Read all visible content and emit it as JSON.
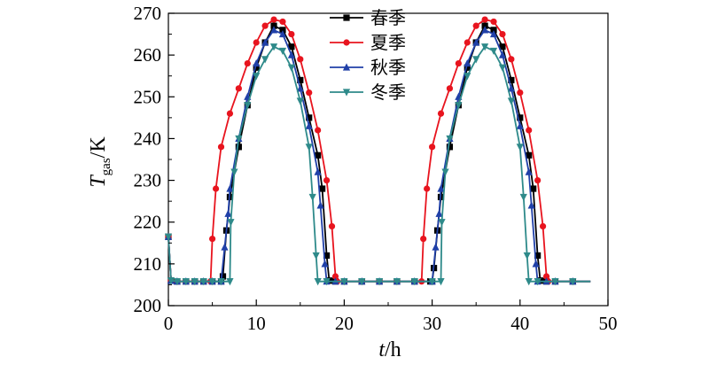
{
  "chart_data": {
    "type": "line",
    "title": "",
    "xlabel": {
      "var": "t",
      "unit": "/h"
    },
    "ylabel": {
      "var": "T",
      "sub": "gas",
      "unit": "/K"
    },
    "xlim": [
      0,
      50
    ],
    "ylim": [
      200,
      270
    ],
    "xticks": [
      0,
      10,
      20,
      30,
      40,
      50
    ],
    "yticks": [
      200,
      210,
      220,
      230,
      240,
      250,
      260,
      270
    ],
    "grid": false,
    "legend_position": "top-center",
    "series": [
      {
        "name": "春季",
        "color": "#000000",
        "marker": "square",
        "x": [
          0,
          0.3,
          1,
          2,
          3,
          4,
          5,
          6,
          6.2,
          6.6,
          7,
          8,
          9,
          10,
          11,
          12,
          13,
          14,
          15,
          16,
          17,
          17.5,
          18,
          18.3,
          19,
          20,
          22,
          24,
          26,
          28,
          29.8,
          30,
          30.2,
          30.6,
          31,
          32,
          33,
          34,
          35,
          36,
          37,
          38,
          39,
          40,
          41,
          41.5,
          42,
          42.3,
          43,
          44,
          46,
          48
        ],
        "y": [
          216.5,
          206,
          205.8,
          205.8,
          205.8,
          205.8,
          205.8,
          205.8,
          207,
          218,
          226,
          238,
          248,
          257,
          263,
          267,
          266,
          262,
          254,
          245,
          236,
          228,
          212,
          206,
          205.8,
          205.8,
          205.8,
          205.8,
          205.8,
          205.8,
          205.8,
          205.8,
          209,
          218,
          226,
          238,
          248,
          257,
          263,
          267,
          266,
          262,
          254,
          245,
          236,
          228,
          212,
          206,
          205.8,
          205.8,
          205.8,
          205.8
        ]
      },
      {
        "name": "夏季",
        "color": "#e8141e",
        "marker": "circle",
        "x": [
          0,
          0.3,
          1,
          2,
          3,
          4,
          4.8,
          5,
          5.4,
          6,
          7,
          8,
          9,
          10,
          11,
          12,
          13,
          14,
          15,
          16,
          17,
          18,
          18.6,
          19,
          19.2,
          20,
          22,
          24,
          26,
          28.8,
          29,
          29.4,
          30,
          31,
          32,
          33,
          34,
          35,
          36,
          37,
          38,
          39,
          40,
          41,
          42,
          42.6,
          43,
          43.2,
          44,
          46,
          48
        ],
        "y": [
          216.5,
          206,
          205.8,
          205.8,
          205.8,
          205.8,
          205.8,
          216,
          228,
          238,
          246,
          252,
          258,
          263,
          267,
          268.5,
          268,
          265,
          259,
          251,
          242,
          230,
          219,
          207,
          205.8,
          205.8,
          205.8,
          205.8,
          205.8,
          205.8,
          216,
          228,
          238,
          246,
          252,
          258,
          263,
          267,
          268.5,
          268,
          265,
          259,
          251,
          242,
          230,
          219,
          207,
          205.8,
          205.8,
          205.8,
          205.8
        ]
      },
      {
        "name": "秋季",
        "color": "#2040a8",
        "marker": "triangle-up",
        "x": [
          0,
          0.3,
          1,
          2,
          3,
          4,
          5,
          6,
          6.4,
          6.8,
          7,
          8,
          9,
          10,
          11,
          12,
          13,
          14,
          15,
          16,
          17,
          17.3,
          17.8,
          18,
          19,
          20,
          22,
          24,
          26,
          28,
          30,
          30.4,
          30.8,
          31,
          32,
          33,
          34,
          35,
          36,
          37,
          38,
          39,
          40,
          41,
          41.3,
          41.8,
          42,
          43,
          44,
          46,
          48
        ],
        "y": [
          216.5,
          206,
          205.8,
          205.8,
          205.8,
          205.8,
          205.8,
          205.8,
          214,
          222,
          228,
          240,
          250,
          258,
          263,
          266,
          265,
          260,
          252,
          243,
          232,
          224,
          210,
          205.8,
          205.8,
          205.8,
          205.8,
          205.8,
          205.8,
          205.8,
          205.8,
          214,
          222,
          228,
          240,
          250,
          258,
          263,
          266,
          265,
          260,
          252,
          243,
          232,
          224,
          210,
          205.8,
          205.8,
          205.8,
          205.8,
          205.8
        ]
      },
      {
        "name": "冬季",
        "color": "#2e8a8a",
        "marker": "triangle-down",
        "x": [
          0,
          0.3,
          1,
          2,
          3,
          4,
          5,
          6,
          7,
          7.1,
          7.5,
          8,
          9,
          10,
          11,
          12,
          13,
          14,
          15,
          16,
          16.4,
          16.8,
          17,
          18,
          20,
          22,
          24,
          26,
          28,
          30,
          31,
          31.1,
          31.5,
          32,
          33,
          34,
          35,
          36,
          37,
          38,
          39,
          40,
          40.4,
          40.8,
          41,
          42,
          44,
          46,
          48
        ],
        "y": [
          216.5,
          206,
          205.8,
          205.8,
          205.8,
          205.8,
          205.8,
          205.8,
          205.8,
          220,
          232,
          240,
          248,
          255,
          259,
          262,
          261,
          257,
          249,
          238,
          226,
          212,
          205.8,
          205.8,
          205.8,
          205.8,
          205.8,
          205.8,
          205.8,
          205.8,
          205.8,
          220,
          232,
          240,
          248,
          255,
          259,
          262,
          261,
          257,
          249,
          238,
          226,
          212,
          205.8,
          205.8,
          205.8,
          205.8,
          205.8
        ]
      }
    ]
  }
}
